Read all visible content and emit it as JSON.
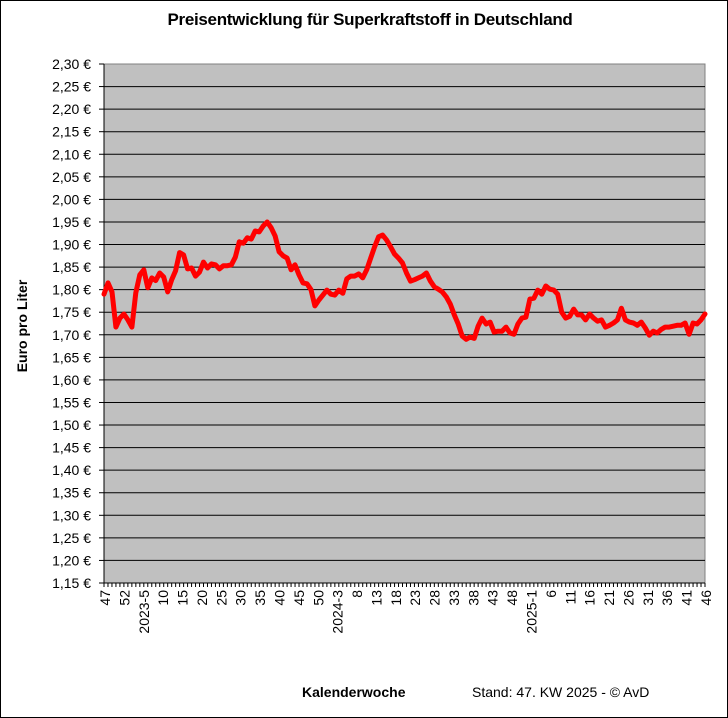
{
  "chart_data": {
    "type": "line",
    "title": "Preisentwicklung für Superkraftstoff in Deutschland",
    "xlabel": "Kalenderwoche",
    "ylabel": "Euro pro Liter",
    "footnote": "Stand: 47. KW 2025 - © AvD",
    "ylim": [
      1.15,
      2.3
    ],
    "y_ticks": [
      "2,30 €",
      "2,25 €",
      "2,20 €",
      "2,15 €",
      "2,10 €",
      "2,05 €",
      "2,00 €",
      "1,95 €",
      "1,90 €",
      "1,85 €",
      "1,80 €",
      "1,75 €",
      "1,70 €",
      "1,65 €",
      "1,60 €",
      "1,55 €",
      "1,50 €",
      "1,45 €",
      "1,40 €",
      "1,35 €",
      "1,30 €",
      "1,25 €",
      "1,20 €",
      "1,15 €"
    ],
    "x_tick_labels": [
      "47",
      "52",
      "2023-5",
      "10",
      "15",
      "20",
      "25",
      "30",
      "35",
      "40",
      "45",
      "50",
      "2024-3",
      "8",
      "13",
      "18",
      "23",
      "28",
      "33",
      "38",
      "43",
      "48",
      "2025-1",
      "6",
      "11",
      "16",
      "21",
      "26",
      "31",
      "36",
      "41",
      "46"
    ],
    "grid": true,
    "plot_background": "#C0C0C0",
    "line_color": "#FF0000",
    "series": [
      {
        "name": "Superkraftstoff",
        "values": [
          1.79,
          1.815,
          1.795,
          1.717,
          1.737,
          1.746,
          1.733,
          1.717,
          1.793,
          1.833,
          1.844,
          1.804,
          1.826,
          1.82,
          1.837,
          1.828,
          1.795,
          1.822,
          1.842,
          1.882,
          1.877,
          1.846,
          1.848,
          1.83,
          1.839,
          1.861,
          1.848,
          1.857,
          1.855,
          1.846,
          1.853,
          1.853,
          1.855,
          1.872,
          1.906,
          1.903,
          1.915,
          1.912,
          1.93,
          1.928,
          1.941,
          1.95,
          1.937,
          1.919,
          1.884,
          1.875,
          1.87,
          1.844,
          1.855,
          1.833,
          1.815,
          1.813,
          1.8,
          1.764,
          1.777,
          1.788,
          1.799,
          1.79,
          1.788,
          1.799,
          1.792,
          1.824,
          1.83,
          1.83,
          1.835,
          1.826,
          1.844,
          1.87,
          1.895,
          1.917,
          1.921,
          1.91,
          1.895,
          1.879,
          1.87,
          1.859,
          1.837,
          1.819,
          1.822,
          1.826,
          1.83,
          1.837,
          1.819,
          1.806,
          1.801,
          1.795,
          1.784,
          1.768,
          1.744,
          1.724,
          1.697,
          1.69,
          1.695,
          1.692,
          1.719,
          1.737,
          1.724,
          1.728,
          1.706,
          1.708,
          1.708,
          1.717,
          1.704,
          1.701,
          1.724,
          1.737,
          1.739,
          1.779,
          1.781,
          1.799,
          1.79,
          1.808,
          1.801,
          1.799,
          1.79,
          1.75,
          1.737,
          1.741,
          1.757,
          1.744,
          1.744,
          1.733,
          1.746,
          1.737,
          1.73,
          1.733,
          1.717,
          1.721,
          1.726,
          1.733,
          1.759,
          1.733,
          1.728,
          1.726,
          1.721,
          1.728,
          1.715,
          1.699,
          1.708,
          1.704,
          1.712,
          1.717,
          1.717,
          1.719,
          1.721,
          1.721,
          1.726,
          1.701,
          1.726,
          1.724,
          1.733,
          1.746
        ]
      }
    ]
  }
}
